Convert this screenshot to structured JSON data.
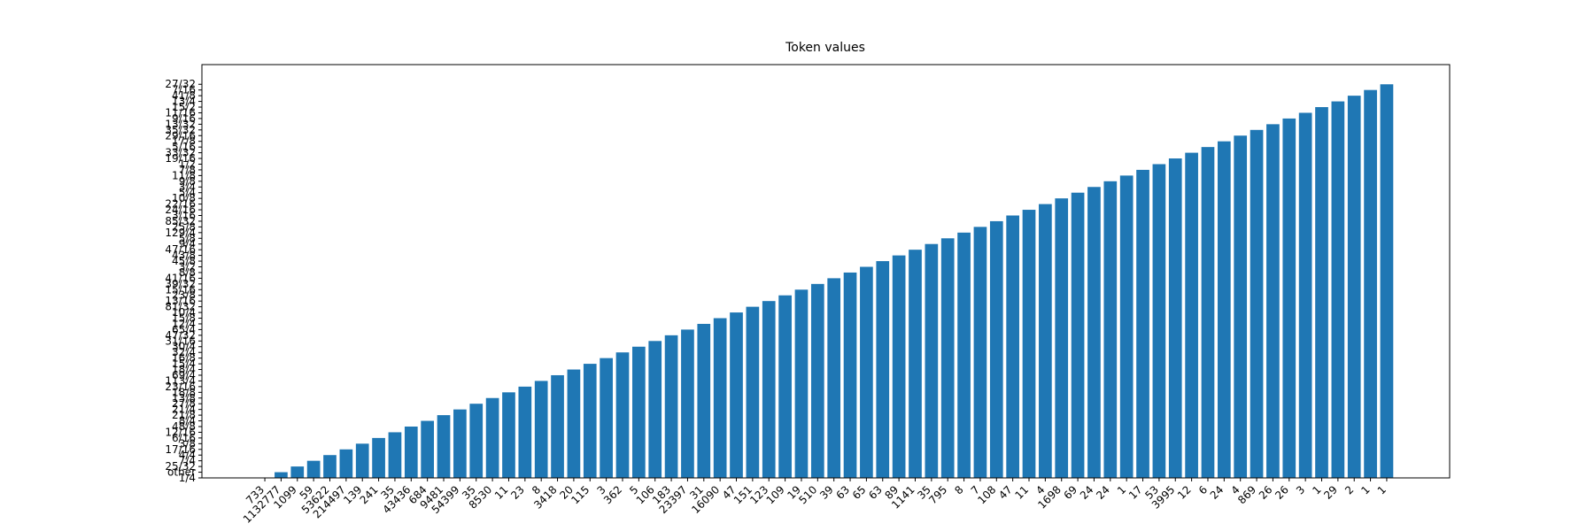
{
  "chart_data": {
    "type": "bar",
    "title": "Token values",
    "categories": [
      "733",
      "1132777",
      "1099",
      "59",
      "53622",
      "214497",
      "139",
      "241",
      "35",
      "43436",
      "684",
      "9481",
      "54399",
      "35",
      "8530",
      "11",
      "23",
      "8",
      "3418",
      "20",
      "115",
      "3",
      "362",
      "5",
      "106",
      "183",
      "23397",
      "31",
      "16090",
      "47",
      "151",
      "123",
      "109",
      "19",
      "510",
      "39",
      "63",
      "65",
      "63",
      "89",
      "1141",
      "35",
      "795",
      "8",
      "7",
      "108",
      "47",
      "11",
      "4",
      "1698",
      "69",
      "24",
      "24",
      "1",
      "17",
      "53",
      "3995",
      "12",
      "6",
      "24",
      "4",
      "869",
      "26",
      "26",
      "3",
      "1",
      "29",
      "2",
      "1",
      "1"
    ],
    "values": [
      0,
      1,
      2,
      3,
      4,
      5,
      6,
      7,
      8,
      9,
      10,
      11,
      12,
      13,
      14,
      15,
      16,
      17,
      18,
      19,
      20,
      21,
      22,
      23,
      24,
      25,
      26,
      27,
      28,
      29,
      30,
      31,
      32,
      33,
      34,
      35,
      36,
      37,
      38,
      39,
      40,
      41,
      42,
      43,
      44,
      45,
      46,
      47,
      48,
      49,
      50,
      51,
      52,
      53,
      54,
      55,
      56,
      57,
      58,
      59,
      60,
      61,
      62,
      63,
      64,
      65,
      66,
      67,
      68,
      69
    ],
    "color": "#1f77b4",
    "xlim": [
      -3.87,
      72.87
    ],
    "ylim": [
      0,
      72.45
    ],
    "yticks": [
      {
        "value": 0,
        "label": "1/4"
      },
      {
        "value": 1,
        "label": "other"
      },
      {
        "value": 2,
        "label": "25/32"
      },
      {
        "value": 3,
        "label": "7/4"
      },
      {
        "value": 4,
        "label": "4/4"
      },
      {
        "value": 5,
        "label": "17/16"
      },
      {
        "value": 6,
        "label": "3/8"
      },
      {
        "value": 7,
        "label": "6/16"
      },
      {
        "value": 8,
        "label": "12/16"
      },
      {
        "value": 9,
        "label": "48/8"
      },
      {
        "value": 10,
        "label": "8/4"
      },
      {
        "value": 11,
        "label": "21/8"
      },
      {
        "value": 12,
        "label": "21/4"
      },
      {
        "value": 13,
        "label": "27/8"
      },
      {
        "value": 14,
        "label": "13/8"
      },
      {
        "value": 15,
        "label": "18/8"
      },
      {
        "value": 16,
        "label": "23/16"
      },
      {
        "value": 17,
        "label": "113/4"
      },
      {
        "value": 18,
        "label": "69/4"
      },
      {
        "value": 19,
        "label": "18/4"
      },
      {
        "value": 20,
        "label": "15/4"
      },
      {
        "value": 21,
        "label": "16/8"
      },
      {
        "value": 22,
        "label": "32/4"
      },
      {
        "value": 23,
        "label": "30/4"
      },
      {
        "value": 24,
        "label": "31/16"
      },
      {
        "value": 25,
        "label": "47/32"
      },
      {
        "value": 26,
        "label": "65/4"
      },
      {
        "value": 27,
        "label": "12/4"
      },
      {
        "value": 28,
        "label": "15/8"
      },
      {
        "value": 29,
        "label": "10/4"
      },
      {
        "value": 30,
        "label": "81/32"
      },
      {
        "value": 31,
        "label": "13/16"
      },
      {
        "value": 32,
        "label": "23/8"
      },
      {
        "value": 33,
        "label": "15/16"
      },
      {
        "value": 34,
        "label": "39/32"
      },
      {
        "value": 35,
        "label": "41/16"
      },
      {
        "value": 36,
        "label": "8/8"
      },
      {
        "value": 37,
        "label": "3/2"
      },
      {
        "value": 38,
        "label": "45/8"
      },
      {
        "value": 39,
        "label": "43/8"
      },
      {
        "value": 40,
        "label": "47/16"
      },
      {
        "value": 41,
        "label": "9/4"
      },
      {
        "value": 42,
        "label": "5/8"
      },
      {
        "value": 43,
        "label": "129/4"
      },
      {
        "value": 44,
        "label": "25/8"
      },
      {
        "value": 45,
        "label": "85/32"
      },
      {
        "value": 46,
        "label": "3/16"
      },
      {
        "value": 47,
        "label": "24/16"
      },
      {
        "value": 48,
        "label": "22/16"
      },
      {
        "value": 49,
        "label": "10/8"
      },
      {
        "value": 50,
        "label": "5/4"
      },
      {
        "value": 51,
        "label": "3/4"
      },
      {
        "value": 52,
        "label": "9/8"
      },
      {
        "value": 53,
        "label": "11/8"
      },
      {
        "value": 54,
        "label": "7/8"
      },
      {
        "value": 55,
        "label": "1/2"
      },
      {
        "value": 56,
        "label": "19/16"
      },
      {
        "value": 57,
        "label": "33/32"
      },
      {
        "value": 58,
        "label": "5/16"
      },
      {
        "value": 59,
        "label": "17/8"
      },
      {
        "value": 60,
        "label": "29/16"
      },
      {
        "value": 61,
        "label": "35/32"
      },
      {
        "value": 62,
        "label": "13/32"
      },
      {
        "value": 63,
        "label": "9/16"
      },
      {
        "value": 64,
        "label": "11/16"
      },
      {
        "value": 65,
        "label": "15/2"
      },
      {
        "value": 66,
        "label": "13/4"
      },
      {
        "value": 67,
        "label": "41/8"
      },
      {
        "value": 68,
        "label": "7/16"
      },
      {
        "value": 69,
        "label": "27/32"
      }
    ],
    "grid": false
  }
}
